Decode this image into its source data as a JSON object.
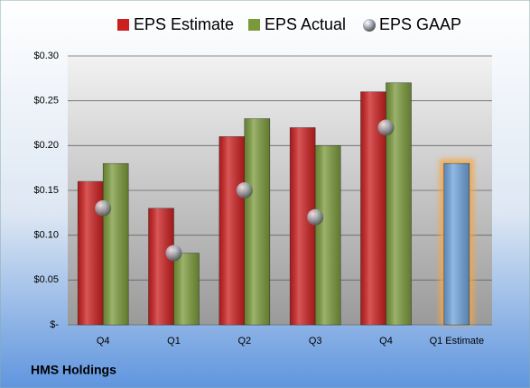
{
  "chart_data": {
    "type": "bar",
    "title": "HMS Holdings",
    "categories": [
      "Q4",
      "Q1",
      "Q2",
      "Q3",
      "Q4",
      "Q1 Estimate"
    ],
    "series": [
      {
        "name": "EPS Estimate",
        "color": "#cc1f1f",
        "values": [
          0.16,
          0.13,
          0.21,
          0.22,
          0.26,
          0.18
        ],
        "point_colors": [
          "#cc1f1f",
          "#cc1f1f",
          "#cc1f1f",
          "#cc1f1f",
          "#cc1f1f",
          "#6fa3dc"
        ]
      },
      {
        "name": "EPS Actual",
        "color": "#7a9a3a",
        "values": [
          0.18,
          0.08,
          0.23,
          0.2,
          0.27,
          null
        ]
      },
      {
        "name": "EPS GAAP",
        "color": "#a9b0bc",
        "marker": "sphere",
        "values": [
          0.13,
          0.08,
          0.15,
          0.12,
          0.22,
          null
        ]
      }
    ],
    "ylim": [
      0,
      0.3
    ],
    "yticks": [
      {
        "value": 0,
        "label": "$-"
      },
      {
        "value": 0.05,
        "label": "$0.05"
      },
      {
        "value": 0.1,
        "label": "$0.10"
      },
      {
        "value": 0.15,
        "label": "$0.15"
      },
      {
        "value": 0.2,
        "label": "$0.20"
      },
      {
        "value": 0.25,
        "label": "$0.25"
      },
      {
        "value": 0.3,
        "label": "$0.30"
      }
    ],
    "grid": true
  }
}
